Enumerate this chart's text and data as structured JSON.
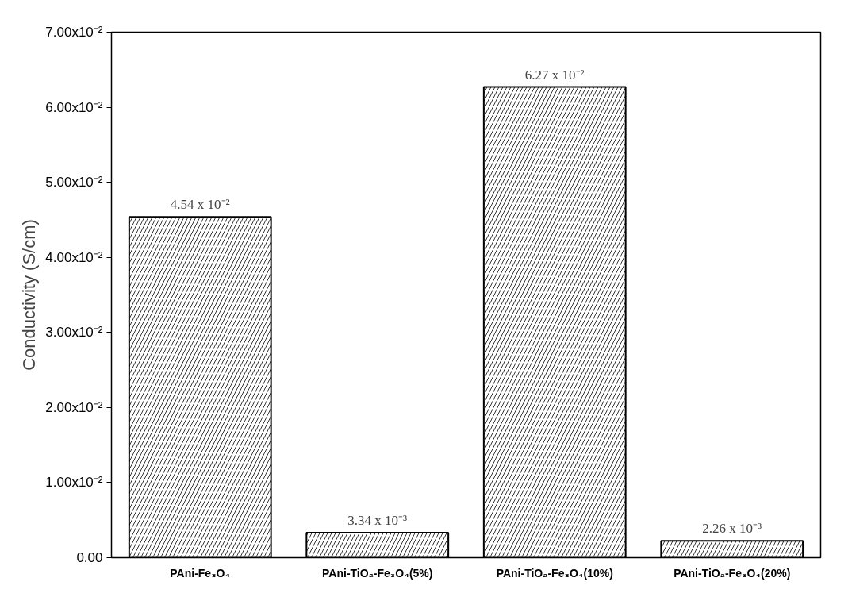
{
  "chart_data": {
    "type": "bar",
    "ylabel": "Conductivity (S/cm)",
    "categories": [
      "PAni-Fe₃O₄",
      "PAni-TiO₂-Fe₃O₄(5%)",
      "PAni-TiO₂-Fe₃O₄(10%)",
      "PAni-TiO₂-Fe₃O₄(20%)"
    ],
    "values": [
      0.0454,
      0.00334,
      0.0627,
      0.00226
    ],
    "value_labels": [
      "4.54 x 10⁻²",
      "3.34 x 10⁻³",
      "6.27 x 10⁻²",
      "2.26 x 10⁻³"
    ],
    "color": "#ffffff",
    "ylim": [
      0,
      0.07
    ],
    "yticks": [
      {
        "value": 0,
        "label": "0.00"
      },
      {
        "value": 0.01,
        "label": "1.00x10⁻²"
      },
      {
        "value": 0.02,
        "label": "2.00x10⁻²"
      },
      {
        "value": 0.03,
        "label": "3.00x10⁻²"
      },
      {
        "value": 0.04,
        "label": "4.00x10⁻²"
      },
      {
        "value": 0.05,
        "label": "5.00x10⁻²"
      },
      {
        "value": 0.06,
        "label": "6.00x10⁻²"
      },
      {
        "value": 0.07,
        "label": "7.00x10⁻²"
      }
    ]
  }
}
